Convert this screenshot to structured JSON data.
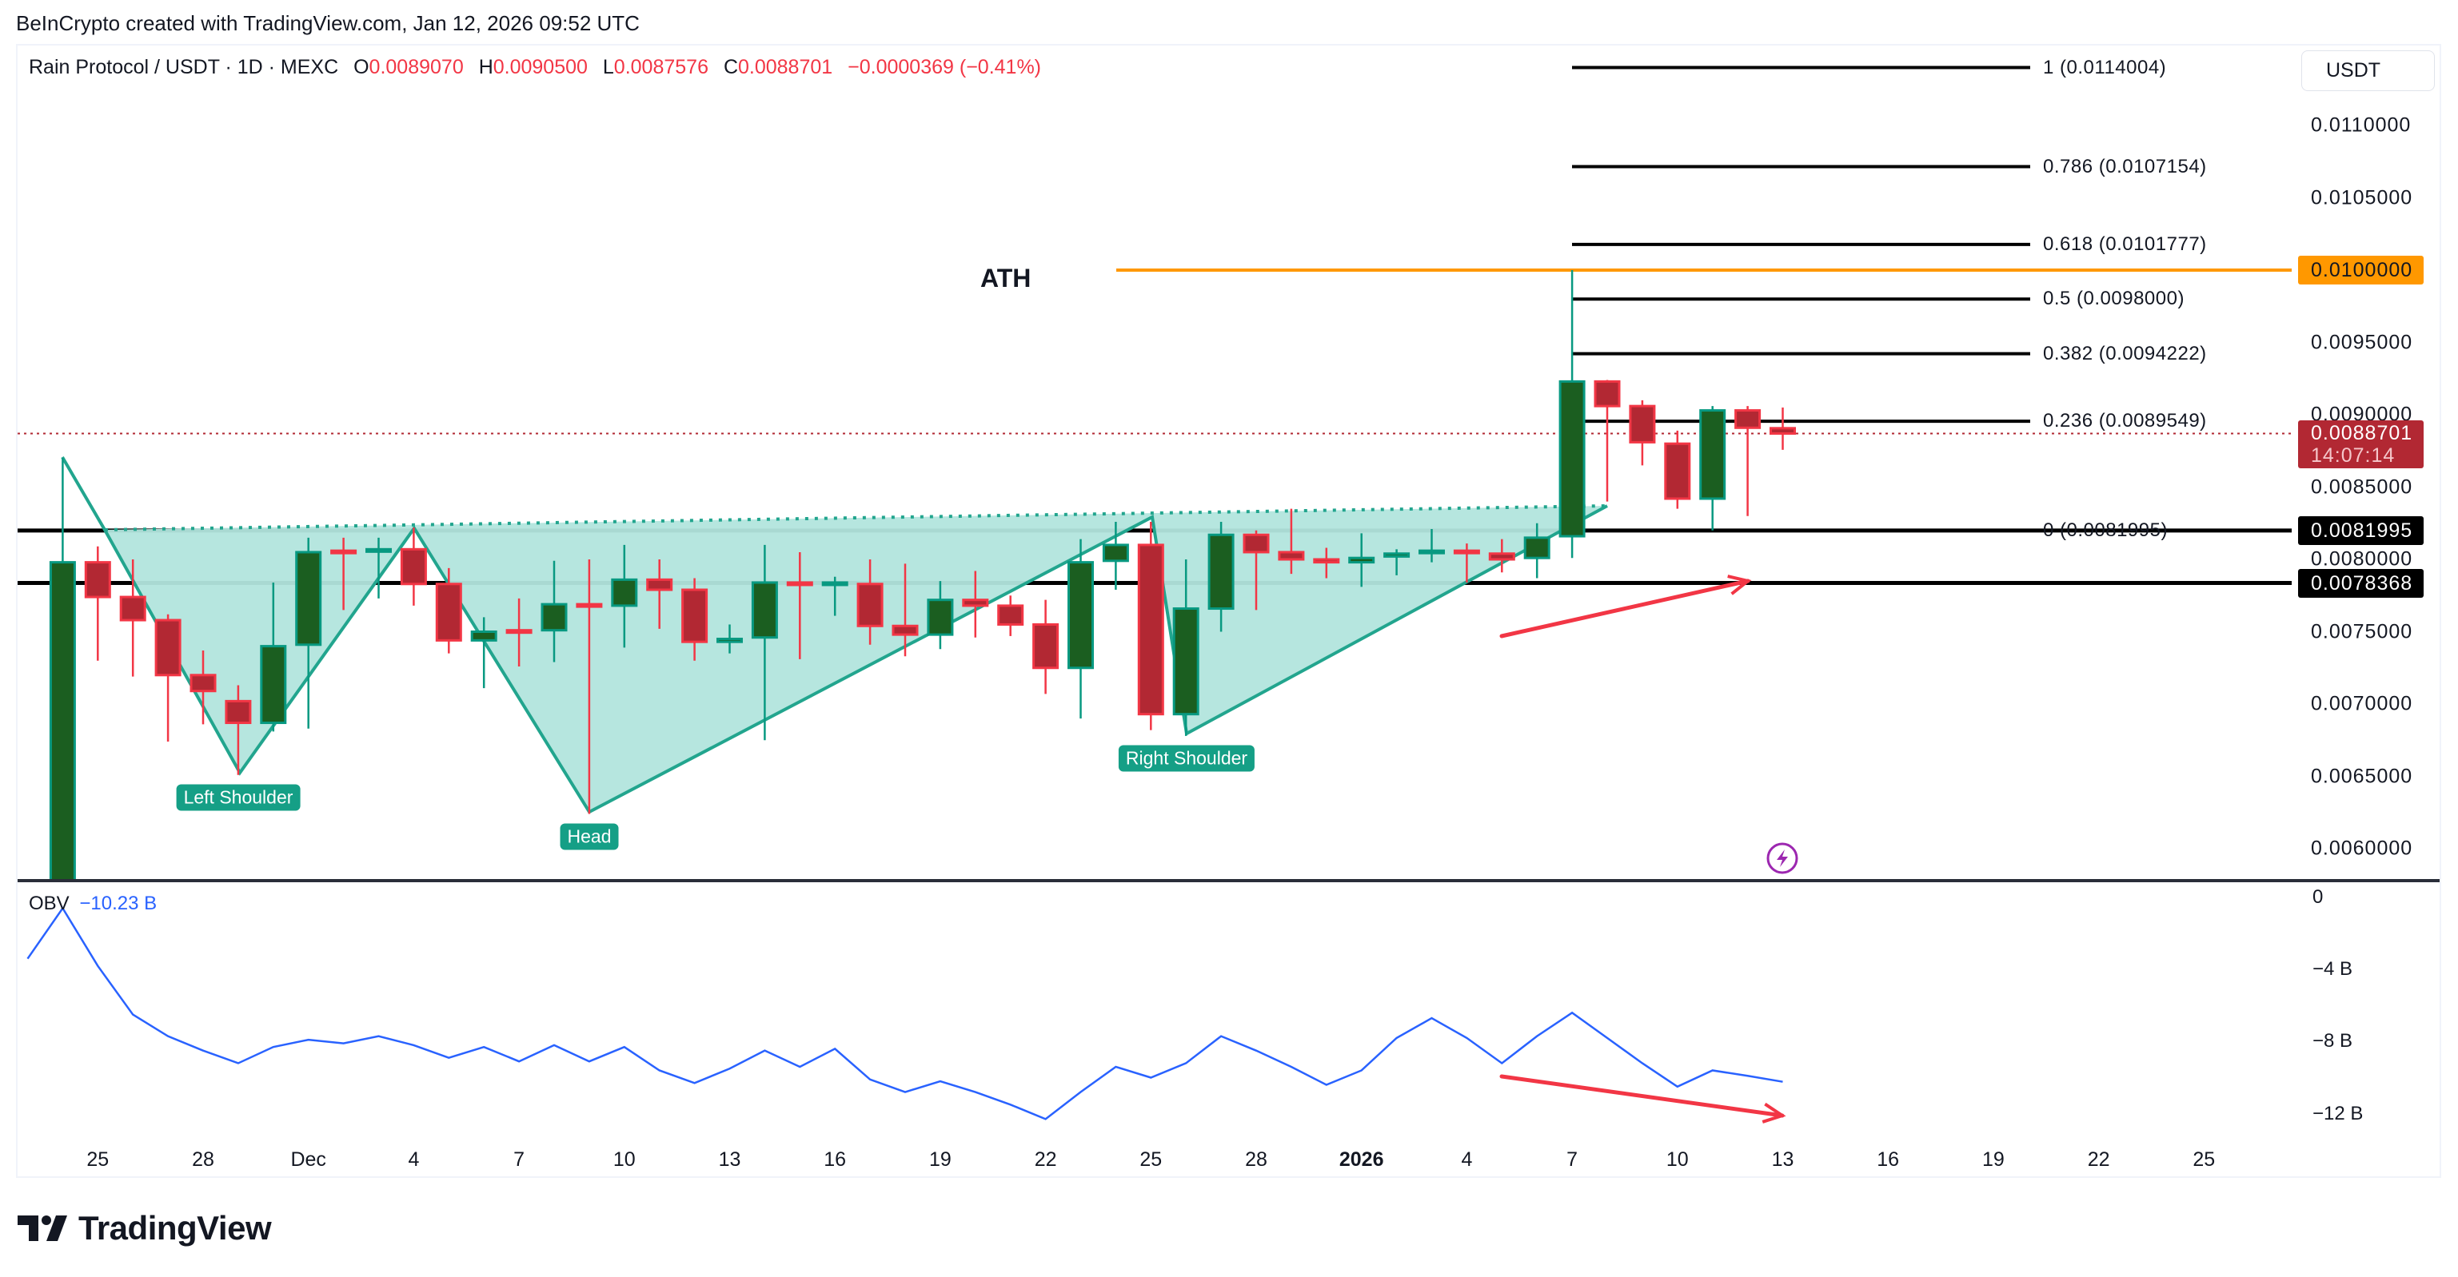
{
  "credit": "BeInCrypto created with TradingView.com, Jan 12, 2026 09:52 UTC",
  "legend": {
    "symbol": "Rain Protocol / USDT · 1D · MEXC",
    "o_label": "O",
    "o": "0.0089070",
    "h_label": "H",
    "h": "0.0090500",
    "l_label": "L",
    "l": "0.0087576",
    "c_label": "C",
    "c": "0.0088701",
    "change": "−0.0000369 (−0.41%)"
  },
  "currency_button": "USDT",
  "price_axis": [
    "0.0110000",
    "0.0105000",
    "0.0095000",
    "0.0090000",
    "0.0085000",
    "0.0080000",
    "0.0075000",
    "0.0070000",
    "0.0065000",
    "0.0060000"
  ],
  "price_badges": {
    "ath": {
      "value": "0.0100000",
      "color": "#ff9800"
    },
    "last": {
      "value": "0.0088701",
      "countdown": "14:07:14",
      "color": "#b22833"
    },
    "neckline": {
      "value": "0.0081995",
      "color": "#000000"
    },
    "support": {
      "value": "0.0078368",
      "color": "#000000"
    }
  },
  "fib_levels": [
    {
      "ratio": 1,
      "price": 0.0114004,
      "label": "1 (0.0114004)"
    },
    {
      "ratio": 0.786,
      "price": 0.0107154,
      "label": "0.786 (0.0107154)"
    },
    {
      "ratio": 0.618,
      "price": 0.0101777,
      "label": "0.618 (0.0101777)"
    },
    {
      "ratio": 0.5,
      "price": 0.0098,
      "label": "0.5 (0.0098000)"
    },
    {
      "ratio": 0.382,
      "price": 0.0094222,
      "label": "0.382 (0.0094222)"
    },
    {
      "ratio": 0.236,
      "price": 0.0089549,
      "label": "0.236 (0.0089549)"
    },
    {
      "ratio": 0,
      "price": 0.0081995,
      "label": "0 (0.0081995)"
    }
  ],
  "annotations": {
    "ath": "ATH",
    "left_shoulder": "Left Shoulder",
    "head": "Head",
    "right_shoulder": "Right Shoulder"
  },
  "time_axis": [
    "25",
    "28",
    "Dec",
    "4",
    "7",
    "10",
    "13",
    "16",
    "19",
    "22",
    "25",
    "28",
    "2026",
    "4",
    "7",
    "10",
    "13",
    "16",
    "19",
    "22",
    "25"
  ],
  "obv": {
    "label": "OBV",
    "value": "−10.23 B",
    "axis": [
      "0",
      "−4 B",
      "−8 B",
      "−12 B"
    ],
    "color": "#2962ff"
  },
  "colors": {
    "up": "#089981",
    "up_body": "#1b5e20",
    "down": "#f23645",
    "down_body": "#b22833",
    "pattern_fill": "#b2e5dd",
    "pattern_line": "#22a58e",
    "arrow": "#f23645"
  },
  "logo": "TradingView",
  "chart_data": [
    {
      "type": "candlestick",
      "title": "Rain Protocol / USDT · 1D · MEXC",
      "ylim": [
        0.0058,
        0.0115
      ],
      "columns": [
        "date",
        "open",
        "high",
        "low",
        "close"
      ],
      "candles": [
        [
          "2025-11-24",
          0.0056,
          0.0087,
          0.0055,
          0.00798
        ],
        [
          "2025-11-25",
          0.00798,
          0.00809,
          0.0073,
          0.00774
        ],
        [
          "2025-11-26",
          0.00774,
          0.008,
          0.00719,
          0.00758
        ],
        [
          "2025-11-27",
          0.00758,
          0.00762,
          0.00674,
          0.0072
        ],
        [
          "2025-11-28",
          0.0072,
          0.00737,
          0.00686,
          0.00709
        ],
        [
          "2025-11-29",
          0.00702,
          0.00713,
          0.00651,
          0.00687
        ],
        [
          "2025-11-30",
          0.00687,
          0.00784,
          0.00681,
          0.0074
        ],
        [
          "2025-12-01",
          0.00741,
          0.00815,
          0.00683,
          0.00805
        ],
        [
          "2025-12-02",
          0.00806,
          0.00815,
          0.00765,
          0.00805
        ],
        [
          "2025-12-03",
          0.00806,
          0.00815,
          0.00773,
          0.00807
        ],
        [
          "2025-12-04",
          0.00807,
          0.00822,
          0.00768,
          0.00783
        ],
        [
          "2025-12-05",
          0.00783,
          0.00794,
          0.00735,
          0.00744
        ],
        [
          "2025-12-06",
          0.00744,
          0.0076,
          0.00711,
          0.0075
        ],
        [
          "2025-12-07",
          0.00751,
          0.00773,
          0.00726,
          0.0075
        ],
        [
          "2025-12-08",
          0.00751,
          0.00799,
          0.00729,
          0.00769
        ],
        [
          "2025-12-09",
          0.00769,
          0.008,
          0.00624,
          0.00768
        ],
        [
          "2025-12-10",
          0.00768,
          0.0081,
          0.00739,
          0.00786
        ],
        [
          "2025-12-11",
          0.00786,
          0.008,
          0.00752,
          0.00779
        ],
        [
          "2025-12-12",
          0.00779,
          0.00787,
          0.0073,
          0.00743
        ],
        [
          "2025-12-13",
          0.00743,
          0.00755,
          0.00735,
          0.00745
        ],
        [
          "2025-12-14",
          0.00746,
          0.0081,
          0.00675,
          0.00784
        ],
        [
          "2025-12-15",
          0.00784,
          0.00805,
          0.00731,
          0.00783
        ],
        [
          "2025-12-16",
          0.00783,
          0.00788,
          0.00761,
          0.00784
        ],
        [
          "2025-12-17",
          0.00783,
          0.008,
          0.00741,
          0.00754
        ],
        [
          "2025-12-18",
          0.00754,
          0.00797,
          0.00733,
          0.00748
        ],
        [
          "2025-12-19",
          0.00748,
          0.00785,
          0.00738,
          0.00772
        ],
        [
          "2025-12-20",
          0.00772,
          0.00792,
          0.00746,
          0.00768
        ],
        [
          "2025-12-21",
          0.00768,
          0.00775,
          0.00747,
          0.00755
        ],
        [
          "2025-12-22",
          0.00755,
          0.00772,
          0.00707,
          0.00725
        ],
        [
          "2025-12-23",
          0.00725,
          0.00814,
          0.0069,
          0.00798
        ],
        [
          "2025-12-24",
          0.00799,
          0.00826,
          0.00779,
          0.0081
        ],
        [
          "2025-12-25",
          0.0081,
          0.00826,
          0.00682,
          0.00693
        ],
        [
          "2025-12-26",
          0.00693,
          0.008,
          0.00678,
          0.00766
        ],
        [
          "2025-12-27",
          0.00766,
          0.00826,
          0.0075,
          0.00817
        ],
        [
          "2025-12-28",
          0.00817,
          0.0082,
          0.00765,
          0.00805
        ],
        [
          "2025-12-29",
          0.00805,
          0.00835,
          0.0079,
          0.008
        ],
        [
          "2025-12-30",
          0.008,
          0.00808,
          0.00787,
          0.00798
        ],
        [
          "2025-12-31",
          0.00798,
          0.00818,
          0.00781,
          0.00801
        ],
        [
          "2026-01-01",
          0.00802,
          0.00807,
          0.00789,
          0.00804
        ],
        [
          "2026-01-02",
          0.00805,
          0.00821,
          0.00798,
          0.00806
        ],
        [
          "2026-01-03",
          0.00806,
          0.00811,
          0.00784,
          0.00805
        ],
        [
          "2026-01-04",
          0.00804,
          0.00814,
          0.00791,
          0.008
        ],
        [
          "2026-01-05",
          0.00801,
          0.00825,
          0.00787,
          0.00815
        ],
        [
          "2026-01-06",
          0.00816,
          0.01,
          0.00801,
          0.00923
        ],
        [
          "2026-01-07",
          0.00923,
          0.00924,
          0.0084,
          0.00906
        ],
        [
          "2026-01-08",
          0.00906,
          0.0091,
          0.00865,
          0.00881
        ],
        [
          "2026-01-09",
          0.0088,
          0.00889,
          0.00835,
          0.00842
        ],
        [
          "2026-01-10",
          0.00842,
          0.00906,
          0.0082,
          0.00903
        ],
        [
          "2026-01-11",
          0.00903,
          0.00906,
          0.0083,
          0.00891
        ],
        [
          "2026-01-12",
          0.008907,
          0.00905,
          0.0087576,
          0.0088701
        ]
      ],
      "horizontal_lines": [
        0.01,
        0.0088701,
        0.0081995,
        0.0078368
      ]
    },
    {
      "type": "line",
      "name": "OBV",
      "ylabel": "B",
      "ylim": [
        -13.5,
        0.5
      ],
      "start_date": "2025-11-23",
      "values": [
        -3.4,
        -0.6,
        -3.8,
        -6.5,
        -7.7,
        -8.5,
        -9.2,
        -8.3,
        -7.9,
        -8.1,
        -7.7,
        -8.2,
        -8.9,
        -8.3,
        -9.1,
        -8.2,
        -9.1,
        -8.3,
        -9.6,
        -10.3,
        -9.5,
        -8.5,
        -9.4,
        -8.4,
        -10.1,
        -10.8,
        -10.2,
        -10.8,
        -11.5,
        -12.3,
        -10.8,
        -9.4,
        -10.0,
        -9.2,
        -7.7,
        -8.5,
        -9.4,
        -10.4,
        -9.6,
        -7.8,
        -6.7,
        -7.8,
        -9.2,
        -7.7,
        -6.4,
        -7.8,
        -9.2,
        -10.5,
        -9.6,
        -9.9,
        -10.23
      ]
    }
  ]
}
